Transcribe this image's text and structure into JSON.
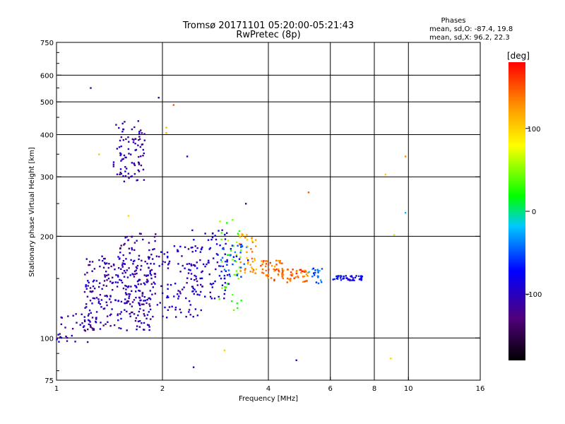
{
  "chart_data": {
    "type": "scatter",
    "title": "Tromsø 20171101 05:20:00-05:21:43",
    "subtitle": "RwPretec (8p)",
    "xlabel": "Frequency [MHz]",
    "ylabel": "Stationary phase Virtual Height [km]",
    "x_scale": "log2",
    "y_scale": "log",
    "xlim": [
      1,
      16
    ],
    "ylim": [
      75,
      750
    ],
    "x_ticks": [
      {
        "value": 1,
        "label": "1"
      },
      {
        "value": 2,
        "label": "2"
      },
      {
        "value": 4,
        "label": "4"
      },
      {
        "value": 6,
        "label": "6"
      },
      {
        "value": 8,
        "label": "8"
      },
      {
        "value": 10,
        "label": "10"
      },
      {
        "value": 16,
        "label": "16"
      }
    ],
    "x_grid": [
      2,
      4,
      6,
      8,
      10
    ],
    "y_ticks": [
      {
        "value": 75,
        "label": "75"
      },
      {
        "value": 100,
        "label": "100"
      },
      {
        "value": 200,
        "label": "200"
      },
      {
        "value": 300,
        "label": "300"
      },
      {
        "value": 400,
        "label": "400"
      },
      {
        "value": 500,
        "label": "500"
      },
      {
        "value": 600,
        "label": "600"
      },
      {
        "value": 750,
        "label": "750"
      }
    ],
    "y_grid": [
      100,
      200,
      300,
      400,
      500,
      600
    ],
    "grid": true,
    "stats": {
      "heading": "Phases",
      "line_o": "mean, sd,O: -87.4, 19.8",
      "line_x": "mean, sd,X:  96.2, 22.3"
    },
    "colorbar": {
      "label": "[deg]",
      "range": [
        -180,
        180
      ],
      "ticks": [
        {
          "value": 100,
          "label": "100"
        },
        {
          "value": 0,
          "label": "0"
        },
        {
          "value": -100,
          "label": "-100"
        }
      ]
    },
    "clusters": [
      {
        "x": [
          1.45,
          1.78
        ],
        "y": [
          290,
          440
        ],
        "phase": -110,
        "n": 90
      },
      {
        "x": [
          1.0,
          1.3
        ],
        "y": [
          97,
          120
        ],
        "phase": -105,
        "n": 40
      },
      {
        "x": [
          1.2,
          1.9
        ],
        "y": [
          105,
          175
        ],
        "phase": -108,
        "n": 260
      },
      {
        "x": [
          1.5,
          2.0
        ],
        "y": [
          125,
          205
        ],
        "phase": -112,
        "n": 90
      },
      {
        "x": [
          2.0,
          2.6
        ],
        "y": [
          115,
          190
        ],
        "phase": -100,
        "n": 90
      },
      {
        "x": [
          2.4,
          3.1
        ],
        "y": [
          130,
          210
        ],
        "phase": -95,
        "n": 80
      },
      {
        "x": [
          2.9,
          3.4
        ],
        "y": [
          120,
          225
        ],
        "phase": 40,
        "n": 40
      },
      {
        "x": [
          2.9,
          3.5
        ],
        "y": [
          150,
          190
        ],
        "phase": -60,
        "n": 40
      },
      {
        "x": [
          3.3,
          3.7
        ],
        "y": [
          155,
          205
        ],
        "phase": 120,
        "n": 40
      },
      {
        "x": [
          3.8,
          4.4
        ],
        "y": [
          148,
          170
        ],
        "phase": 140,
        "n": 50
      },
      {
        "x": [
          4.3,
          5.2
        ],
        "y": [
          145,
          160
        ],
        "phase": 145,
        "n": 45
      },
      {
        "x": [
          5.2,
          5.7
        ],
        "y": [
          145,
          162
        ],
        "phase": -45,
        "n": 20
      },
      {
        "x": [
          6.1,
          7.4
        ],
        "y": [
          148,
          153
        ],
        "phase": -80,
        "n": 45
      }
    ],
    "points": [
      {
        "x": 1.25,
        "y": 550,
        "phase": -100
      },
      {
        "x": 1.95,
        "y": 515,
        "phase": -110
      },
      {
        "x": 2.15,
        "y": 490,
        "phase": 150
      },
      {
        "x": 2.05,
        "y": 420,
        "phase": 110
      },
      {
        "x": 2.05,
        "y": 405,
        "phase": 115
      },
      {
        "x": 2.35,
        "y": 345,
        "phase": -110
      },
      {
        "x": 1.32,
        "y": 350,
        "phase": 105
      },
      {
        "x": 1.6,
        "y": 230,
        "phase": 95
      },
      {
        "x": 3.45,
        "y": 250,
        "phase": -110
      },
      {
        "x": 5.2,
        "y": 270,
        "phase": 150
      },
      {
        "x": 8.6,
        "y": 305,
        "phase": 100
      },
      {
        "x": 9.8,
        "y": 345,
        "phase": 130
      },
      {
        "x": 9.8,
        "y": 235,
        "phase": -20
      },
      {
        "x": 9.1,
        "y": 202,
        "phase": 60
      },
      {
        "x": 2.45,
        "y": 82,
        "phase": -110
      },
      {
        "x": 3.0,
        "y": 92,
        "phase": 100
      },
      {
        "x": 4.8,
        "y": 86,
        "phase": -110
      },
      {
        "x": 8.9,
        "y": 87,
        "phase": 100
      }
    ]
  }
}
